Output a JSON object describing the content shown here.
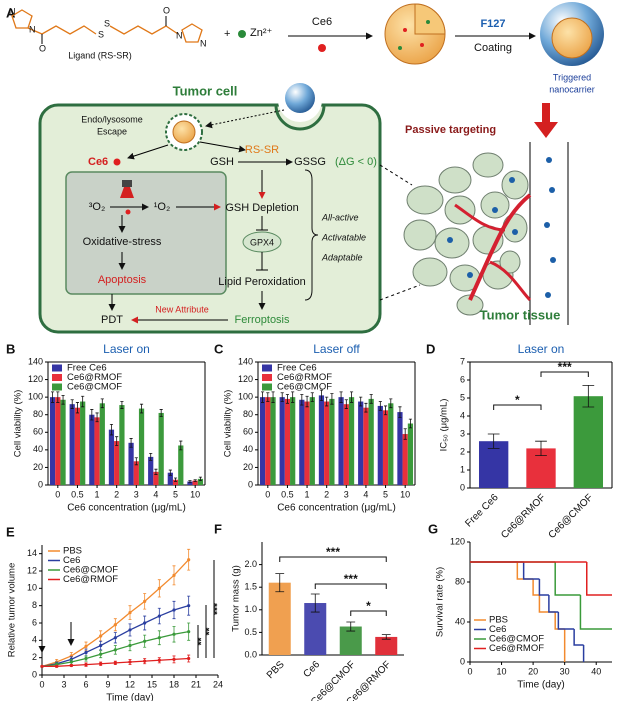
{
  "figure_a": {
    "label": "A",
    "atoms": [
      "N",
      "N",
      "O",
      "S",
      "S",
      "O",
      "N",
      "N"
    ],
    "ligand": "Ligand (RS-SR)",
    "zn": "Zn²⁺",
    "ce6_reagent": "Ce6",
    "f127": "F127",
    "coating": "Coating",
    "nanocarrier": [
      "Triggered",
      "nanocarrier"
    ],
    "cell_title": "Tumor cell",
    "escape": [
      "Endo/lysosome",
      "Escape"
    ],
    "ce6_release": "Ce6",
    "gsh": "GSH",
    "rssr": "RS-SR",
    "gssg": "GSSG",
    "dg": "(ΔG < 0)",
    "o2_3": "³O₂",
    "o2_1": "¹O₂",
    "gsh_depletion": "GSH Depletion",
    "gpx4": "GPX4",
    "oxidative": "Oxidative-stress",
    "apoptosis": "Apoptosis",
    "lipid": "Lipid Peroxidation",
    "features": [
      "All-active",
      "Activatable",
      "Adaptable"
    ],
    "pdt": "PDT",
    "new_attribute": "New Attribute",
    "ferroptosis": "Ferroptosis",
    "passive": "Passive targeting",
    "tissue": "Tumor tissue"
  },
  "chart_data": [
    {
      "type": "bar",
      "label": "B",
      "title": "Laser on",
      "xlabel": "Ce6 concentration (μg/mL)",
      "ylabel": "Cell viability (%)",
      "categories": [
        "0",
        "0.5",
        "1",
        "2",
        "3",
        "4",
        "5",
        "10"
      ],
      "ylim": [
        0,
        140
      ],
      "yticks": [
        0,
        20,
        40,
        60,
        80,
        100,
        120,
        140
      ],
      "series": [
        {
          "name": "Free Ce6",
          "color": "#3535a5",
          "values": [
            100,
            92,
            80,
            63,
            48,
            32,
            14,
            4
          ],
          "errors": [
            6,
            5,
            6,
            6,
            5,
            4,
            3,
            1
          ]
        },
        {
          "name": "Ce6@RMOF",
          "color": "#e8303c",
          "values": [
            100,
            88,
            77,
            50,
            27,
            15,
            6,
            5
          ],
          "errors": [
            6,
            6,
            5,
            5,
            4,
            3,
            2,
            1
          ]
        },
        {
          "name": "Ce6@CMOF",
          "color": "#3c9a3c",
          "values": [
            97,
            95,
            93,
            91,
            87,
            82,
            45,
            7
          ],
          "errors": [
            5,
            6,
            5,
            4,
            5,
            4,
            5,
            2
          ]
        }
      ]
    },
    {
      "type": "bar",
      "label": "C",
      "title": "Laser off",
      "xlabel": "Ce6 concentration (μg/mL)",
      "ylabel": "Cell viability (%)",
      "categories": [
        "0",
        "0.5",
        "1",
        "2",
        "3",
        "4",
        "5",
        "10"
      ],
      "ylim": [
        0,
        140
      ],
      "yticks": [
        0,
        20,
        40,
        60,
        80,
        100,
        120,
        140
      ],
      "series": [
        {
          "name": "Free Ce6",
          "color": "#3535a5",
          "values": [
            100,
            100,
            97,
            102,
            100,
            95,
            90,
            83
          ],
          "errors": [
            6,
            5,
            6,
            6,
            6,
            5,
            5,
            6
          ]
        },
        {
          "name": "Ce6@RMOF",
          "color": "#e8303c",
          "values": [
            100,
            98,
            95,
            95,
            92,
            88,
            85,
            58
          ],
          "errors": [
            5,
            5,
            6,
            5,
            5,
            5,
            5,
            6
          ]
        },
        {
          "name": "Ce6@CMOF",
          "color": "#3c9a3c",
          "values": [
            100,
            100,
            100,
            98,
            100,
            98,
            93,
            70
          ],
          "errors": [
            6,
            6,
            5,
            6,
            6,
            5,
            5,
            5
          ]
        }
      ]
    },
    {
      "type": "bar",
      "label": "D",
      "title": "Laser on",
      "ylabel": "IC₅₀ (μg/mL)",
      "categories": [
        "Free Ce6",
        "Ce6@RMOF",
        "Ce6@CMOF"
      ],
      "values": [
        2.6,
        2.2,
        5.1
      ],
      "errors": [
        0.4,
        0.4,
        0.6
      ],
      "colors": [
        "#3535a5",
        "#e8303c",
        "#3c9a3c"
      ],
      "ylim": [
        0,
        7
      ],
      "yticks": [
        0,
        1,
        2,
        3,
        4,
        5,
        6,
        7
      ],
      "annotations": [
        "*",
        "***"
      ]
    },
    {
      "type": "line",
      "label": "E",
      "xlabel": "Time (day)",
      "ylabel": "Relative tumor volume",
      "x": [
        0,
        2,
        4,
        6,
        8,
        10,
        12,
        14,
        16,
        18,
        20
      ],
      "xlim": [
        0,
        24
      ],
      "xticks": [
        0,
        3,
        6,
        9,
        12,
        15,
        18,
        21,
        24
      ],
      "ylim": [
        0,
        15
      ],
      "yticks": [
        0,
        2,
        4,
        6,
        8,
        10,
        12,
        14
      ],
      "series": [
        {
          "name": "PBS",
          "color": "#f28a2e",
          "values": [
            1,
            1.5,
            2.2,
            3.3,
            4.5,
            5.8,
            7.2,
            8.5,
            10,
            11.5,
            13.3
          ],
          "errors": [
            0,
            0.3,
            0.4,
            0.5,
            0.6,
            0.7,
            0.8,
            0.9,
            1,
            1.1,
            1.2
          ]
        },
        {
          "name": "Ce6",
          "color": "#2a3ea0",
          "values": [
            1,
            1.3,
            1.8,
            2.6,
            3.4,
            4.3,
            5.2,
            6,
            6.8,
            7.5,
            8
          ],
          "errors": [
            0,
            0.2,
            0.3,
            0.4,
            0.5,
            0.6,
            0.7,
            0.8,
            0.9,
            1,
            1.1
          ]
        },
        {
          "name": "Ce6@CMOF",
          "color": "#3a9a3a",
          "values": [
            1,
            1.2,
            1.5,
            1.9,
            2.4,
            2.9,
            3.4,
            3.9,
            4.3,
            4.7,
            5
          ],
          "errors": [
            0,
            0.2,
            0.3,
            0.3,
            0.4,
            0.5,
            0.6,
            0.7,
            0.8,
            0.9,
            1
          ]
        },
        {
          "name": "Ce6@RMOF",
          "color": "#e02020",
          "values": [
            1,
            1,
            1.1,
            1.2,
            1.3,
            1.4,
            1.5,
            1.6,
            1.7,
            1.8,
            1.9
          ],
          "errors": [
            0,
            0.1,
            0.1,
            0.2,
            0.2,
            0.2,
            0.3,
            0.3,
            0.3,
            0.4,
            0.4
          ]
        }
      ],
      "annotations": [
        "**",
        "**",
        "***"
      ]
    },
    {
      "type": "bar",
      "label": "F",
      "ylabel": "Tumor mass (g)",
      "categories": [
        "PBS",
        "Ce6",
        "Ce6@CMOF",
        "Ce6@RMOF"
      ],
      "values": [
        1.6,
        1.15,
        0.63,
        0.4
      ],
      "errors": [
        0.2,
        0.2,
        0.1,
        0.05
      ],
      "colors": [
        "#f0a050",
        "#4b4bb0",
        "#4a9a4a",
        "#e0303a"
      ],
      "ylim": [
        0,
        2.5
      ],
      "yticks": [
        {
          "value": 0,
          "label": "0.0"
        },
        0.5,
        {
          "value": 1,
          "label": "1.0"
        },
        1.5,
        {
          "value": 2,
          "label": "2.0"
        }
      ],
      "annotations": [
        "***",
        "***",
        "*"
      ]
    },
    {
      "type": "line",
      "label": "G",
      "drawstyle": "steps-post",
      "xlabel": "Time (day)",
      "ylabel": "Survival rate (%)",
      "xlim": [
        0,
        45
      ],
      "xticks": [
        0,
        10,
        20,
        30,
        40
      ],
      "ylim": [
        0,
        120
      ],
      "yticks": [
        0,
        40,
        80,
        120
      ],
      "series": [
        {
          "name": "PBS",
          "color": "#f28a2e",
          "x": [
            0,
            15,
            20,
            22,
            27,
            30
          ],
          "values": [
            100,
            83,
            67,
            50,
            33,
            0
          ]
        },
        {
          "name": "Ce6",
          "color": "#2a3ea0",
          "x": [
            0,
            17,
            22,
            25,
            28,
            33,
            36
          ],
          "values": [
            100,
            83,
            67,
            50,
            33,
            17,
            0
          ]
        },
        {
          "name": "Ce6@CMOF",
          "color": "#3a9a3a",
          "x": [
            0,
            27,
            35,
            45
          ],
          "values": [
            100,
            67,
            33,
            33
          ]
        },
        {
          "name": "Ce6@RMOF",
          "color": "#e02020",
          "x": [
            0,
            37,
            45
          ],
          "values": [
            100,
            67,
            67
          ]
        }
      ]
    }
  ]
}
